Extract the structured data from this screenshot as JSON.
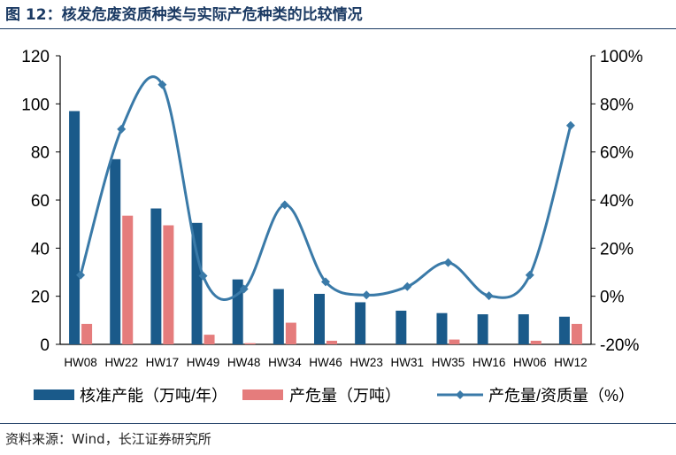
{
  "title": "图 12：核发危废资质种类与实际产危种类的比较情况",
  "source": "资料来源：Wind，长江证券研究所",
  "colors": {
    "bar1": "#1a5a8a",
    "bar2": "#e57c7c",
    "line": "#3a7aa8",
    "title": "#1b3a63"
  },
  "chart_data": {
    "type": "bar",
    "categories": [
      "HW08",
      "HW22",
      "HW17",
      "HW49",
      "HW48",
      "HW34",
      "HW46",
      "HW23",
      "HW31",
      "HW35",
      "HW16",
      "HW06",
      "HW12"
    ],
    "y_left": {
      "ticks": [
        "0",
        "20",
        "40",
        "60",
        "80",
        "100",
        "120"
      ],
      "ylim": [
        0,
        120
      ]
    },
    "y_right": {
      "ticks": [
        "-20%",
        "0%",
        "20%",
        "40%",
        "60%",
        "80%",
        "100%"
      ],
      "ylim": [
        -20,
        100
      ]
    },
    "series": [
      {
        "name": "核准产能（万吨/年）",
        "type": "bar",
        "axis": "left",
        "values": [
          97,
          77,
          56.5,
          50.5,
          27,
          23,
          21,
          17.5,
          14,
          13,
          12.5,
          12.5,
          11.5
        ]
      },
      {
        "name": "产危量（万吨）",
        "type": "bar",
        "axis": "left",
        "values": [
          8.5,
          53.5,
          49.5,
          4,
          0.5,
          9,
          1.5,
          0,
          0,
          2,
          0,
          1.5,
          8.5
        ]
      },
      {
        "name": "产危量/资质量（%）",
        "type": "line",
        "axis": "right",
        "values": [
          8.8,
          69.5,
          88,
          8.5,
          3,
          38,
          6,
          0.5,
          4,
          14,
          0.2,
          8.8,
          71
        ]
      }
    ],
    "legend_position": "bottom",
    "grid": false
  }
}
